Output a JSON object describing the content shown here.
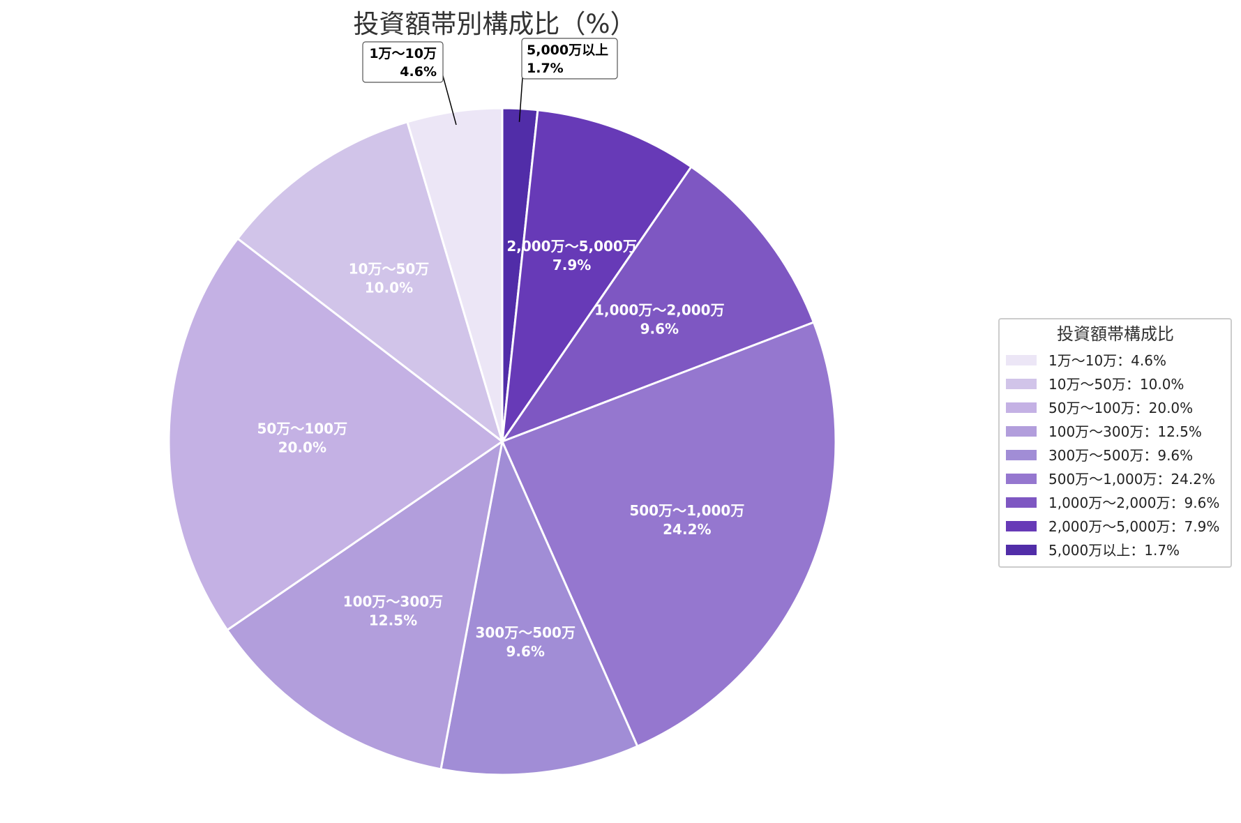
{
  "chart_data": {
    "type": "pie",
    "title": "投資額帯別構成比（%）",
    "categories": [
      "1万～10万",
      "10万～50万",
      "50万～100万",
      "100万～300万",
      "300万～500万",
      "500万～1,000万",
      "1,000万～2,000万",
      "2,000万～5,000万",
      "5,000万以上"
    ],
    "values": [
      4.6,
      10.0,
      20.0,
      12.5,
      9.6,
      24.2,
      9.6,
      7.9,
      1.7
    ],
    "value_labels": [
      "4.6%",
      "10.0%",
      "20.0%",
      "12.5%",
      "9.6%",
      "24.2%",
      "9.6%",
      "7.9%",
      "1.7%"
    ],
    "colors": [
      "#ece6f6",
      "#d1c4e9",
      "#c4b1e4",
      "#b29edc",
      "#a18dd6",
      "#9577cf",
      "#7e57c2",
      "#673ab7",
      "#512da8"
    ],
    "legend": {
      "title": "投資額帯構成比",
      "placement": "right",
      "entries": [
        "1万～10万：4.6%",
        "10万～50万：10.0%",
        "50万～100万：20.0%",
        "100万～300万：12.5%",
        "300万～500万：9.6%",
        "500万～1,000万：24.2%",
        "1,000万～2,000万：9.6%",
        "2,000万～5,000万：7.9%",
        "5,000万以上：1.7%"
      ]
    },
    "callouts": [
      "1万～10万",
      "5,000万以上"
    ]
  }
}
